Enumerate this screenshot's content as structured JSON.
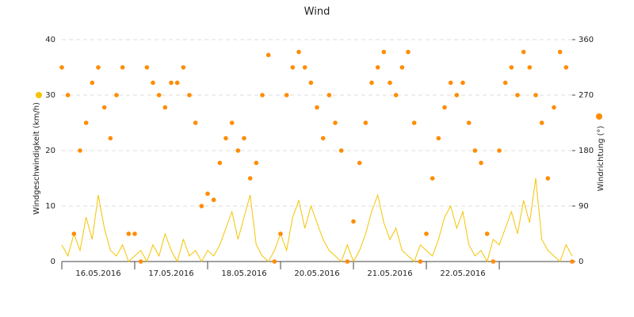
{
  "chart_data": {
    "type": "line",
    "title": "Wind",
    "x": [
      0,
      2,
      4,
      6,
      8,
      10,
      12,
      14,
      16,
      18,
      20,
      22,
      24,
      26,
      28,
      30,
      32,
      34,
      36,
      38,
      40,
      42,
      44,
      46,
      48,
      50,
      52,
      54,
      56,
      58,
      60,
      62,
      64,
      66,
      68,
      70,
      72,
      74,
      76,
      78,
      80,
      82,
      84,
      86,
      88,
      90,
      92,
      94,
      96,
      98,
      100,
      102,
      104,
      106,
      108,
      110,
      112,
      114,
      116,
      118,
      120,
      122,
      124,
      126,
      128,
      130,
      132,
      134,
      136,
      138,
      140,
      142,
      144,
      146,
      148,
      150,
      152,
      154,
      156,
      158,
      160,
      162,
      164,
      166,
      168
    ],
    "xlim": [
      0,
      168
    ],
    "xticks": [
      {
        "value": 12,
        "label": "16.05.2016"
      },
      {
        "value": 36,
        "label": "17.05.2016"
      },
      {
        "value": 60,
        "label": "18.05.2016"
      },
      {
        "value": 84,
        "label": "20.05.2016"
      },
      {
        "value": 108,
        "label": "21.05.2016"
      },
      {
        "value": 132,
        "label": "22.05.2016"
      }
    ],
    "ylim": [
      0,
      40
    ],
    "yticks": [
      0,
      10,
      20,
      30,
      40
    ],
    "y2lim": [
      0,
      360
    ],
    "y2ticks": [
      0,
      90,
      180,
      270,
      360
    ],
    "grid": true,
    "series": [
      {
        "name": "Windgeschwindigkeit (km/h)",
        "type": "line",
        "color": "#f5c400",
        "values": [
          3,
          1,
          5,
          2,
          8,
          4,
          12,
          6,
          2,
          1,
          3,
          0,
          1,
          2,
          0,
          3,
          1,
          5,
          2,
          0,
          4,
          1,
          2,
          0,
          2,
          1,
          3,
          6,
          9,
          4,
          8,
          12,
          3,
          1,
          0,
          2,
          5,
          2,
          8,
          11,
          6,
          10,
          7,
          4,
          2,
          1,
          0,
          3,
          0,
          2,
          5,
          9,
          12,
          7,
          4,
          6,
          2,
          1,
          0,
          3,
          2,
          1,
          4,
          8,
          10,
          6,
          9,
          3,
          1,
          2,
          0,
          4,
          3,
          6,
          9,
          5,
          11,
          7,
          15,
          4,
          2,
          1,
          0,
          3,
          1
        ]
      },
      {
        "name": "Windrichtung (°)",
        "type": "scatter",
        "axis": "y2",
        "color": "#ff8c00",
        "values": [
          315,
          270,
          45,
          180,
          225,
          290,
          315,
          250,
          200,
          270,
          315,
          45,
          45,
          0,
          315,
          290,
          270,
          250,
          290,
          290,
          315,
          270,
          225,
          90,
          110,
          100,
          160,
          200,
          225,
          180,
          200,
          135,
          160,
          270,
          335,
          0,
          45,
          270,
          315,
          340,
          315,
          290,
          250,
          200,
          270,
          225,
          180,
          0,
          65,
          160,
          225,
          290,
          315,
          340,
          290,
          270,
          315,
          340,
          225,
          0,
          45,
          135,
          200,
          250,
          290,
          270,
          290,
          225,
          180,
          160,
          45,
          0,
          180,
          290,
          315,
          270,
          340,
          315,
          270,
          225,
          135,
          250,
          340,
          315,
          0
        ]
      }
    ]
  }
}
